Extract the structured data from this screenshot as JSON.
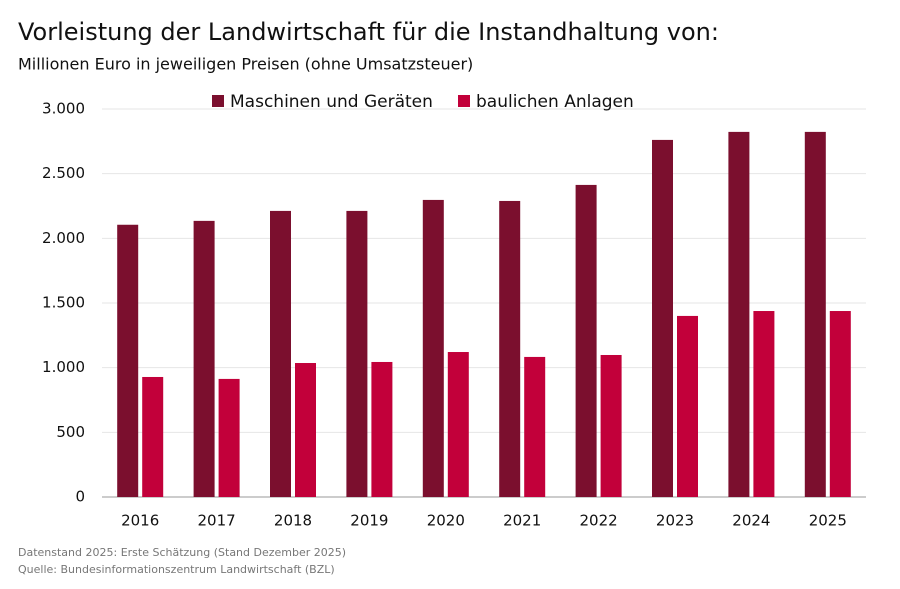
{
  "chart_data": {
    "type": "grouped_bar",
    "title": "Vorleistung der Landwirtschaft für die Instandhaltung von:",
    "subtitle": "Millionen Euro in jeweiligen Preisen (ohne Umsatzsteuer)",
    "categories": [
      "2016",
      "2017",
      "2018",
      "2019",
      "2020",
      "2021",
      "2022",
      "2023",
      "2024",
      "2025"
    ],
    "series": [
      {
        "name": "Maschinen und Geräten",
        "color": "#7b0f2e",
        "values": [
          2105,
          2135,
          2212,
          2212,
          2297,
          2289,
          2413,
          2761,
          2823,
          2823
        ]
      },
      {
        "name": "baulichen Anlagen",
        "color": "#c2003a",
        "values": [
          928,
          913,
          1036,
          1044,
          1121,
          1083,
          1098,
          1400,
          1438,
          1438
        ]
      }
    ],
    "ylim": [
      0,
      3000
    ],
    "yticks": [
      0,
      500,
      {
        "value": 1000,
        "label": "1.000"
      },
      {
        "value": 1500,
        "label": "1.500"
      },
      {
        "value": 2000,
        "label": "2.000"
      },
      {
        "value": 2500,
        "label": "2.500"
      },
      {
        "value": 3000,
        "label": "3.000"
      }
    ],
    "grid": true,
    "legend": "top",
    "notes": [
      "Datenstand 2025: Erste Schätzung (Stand Dezember 2025)",
      "Quelle: Bundesinformationszentrum Landwirtschaft (BZL)"
    ]
  }
}
